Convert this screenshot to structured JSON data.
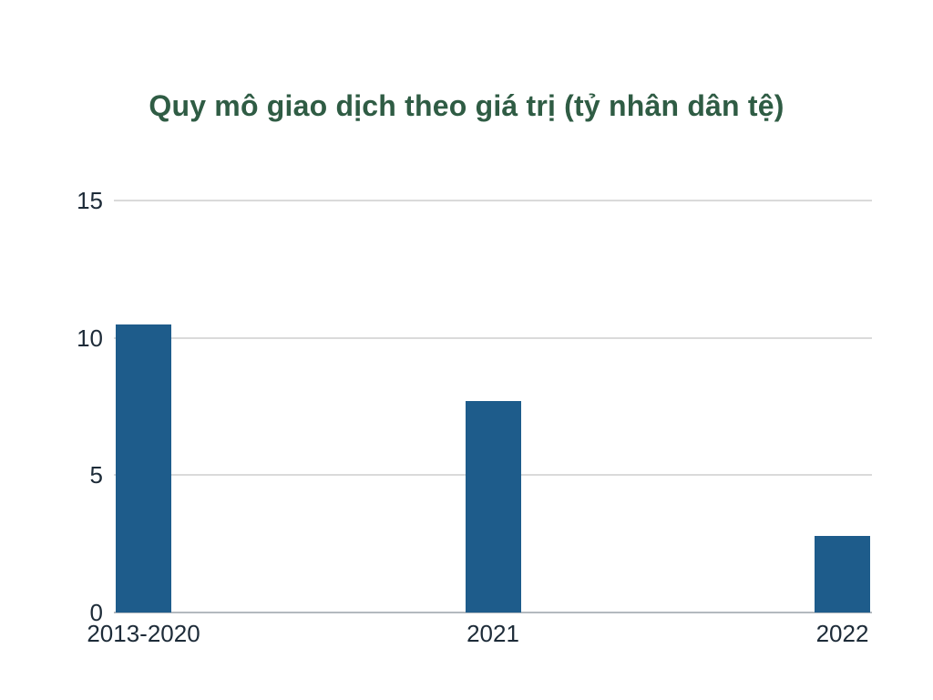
{
  "chart_data": {
    "type": "bar",
    "title": "Quy mô giao dịch theo giá trị (tỷ nhân dân tệ)",
    "categories": [
      "2013-2020",
      "2021",
      "2022"
    ],
    "values": [
      10.5,
      7.7,
      2.8
    ],
    "ylim": [
      0,
      15
    ],
    "yticks": [
      0,
      5,
      10,
      15
    ],
    "xlabel": "",
    "ylabel": "",
    "grid": true,
    "legend": false,
    "colors": {
      "bar": "#1E5C8B",
      "title": "#2F5C44",
      "axis_text": "#1D2B38",
      "gridline": "#DADADA",
      "axis_line": "#B3B9BF",
      "background": "#FFFFFF"
    }
  }
}
